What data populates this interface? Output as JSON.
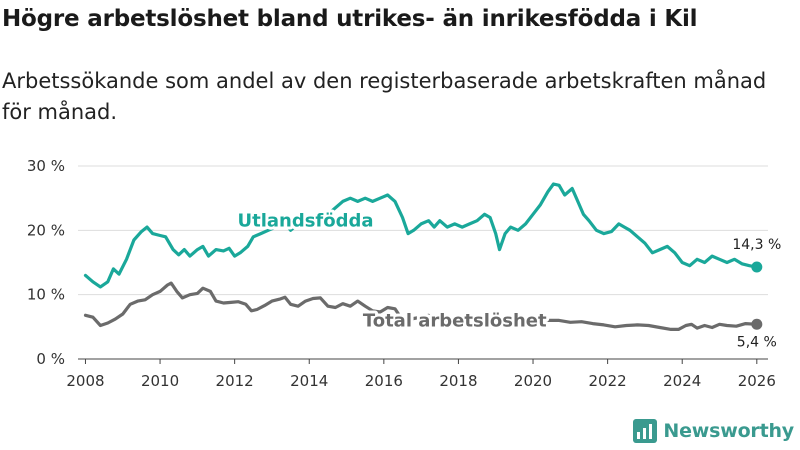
{
  "title": "Högre arbetslöshet bland utrikes- än inrikesfödda i Kil",
  "subtitle": "Arbetssökande som andel av den registerbaserade arbetskraften månad för månad.",
  "brand": "Newsworthy",
  "colors": {
    "foreign_born": "#1aa89a",
    "total": "#6b6b6b",
    "grid": "#dddddd",
    "brand": "#3a9a8f"
  },
  "chart_data": {
    "type": "line",
    "title": "Högre arbetslöshet bland utrikes- än inrikesfödda i Kil",
    "xlabel": "",
    "ylabel": "",
    "xlim": [
      2007.8,
      2026.3
    ],
    "ylim": [
      0,
      30
    ],
    "x_ticks": [
      2008,
      2010,
      2012,
      2014,
      2016,
      2018,
      2020,
      2022,
      2024,
      2026
    ],
    "x_tick_labels": [
      "2008",
      "2010",
      "2012",
      "2014",
      "2016",
      "2018",
      "2020",
      "2022",
      "2024",
      "2026"
    ],
    "y_ticks": [
      0,
      10,
      20,
      30
    ],
    "y_tick_labels": [
      "0 %",
      "10 %",
      "20 %",
      "30 %"
    ],
    "grid": true,
    "series": [
      {
        "name": "Utlandsfödda",
        "color": "#1aa89a",
        "end_label": "14,3 %",
        "points": [
          [
            2008.0,
            13.0
          ],
          [
            2008.2,
            12.0
          ],
          [
            2008.4,
            11.2
          ],
          [
            2008.6,
            12.0
          ],
          [
            2008.75,
            14.0
          ],
          [
            2008.9,
            13.2
          ],
          [
            2009.1,
            15.5
          ],
          [
            2009.3,
            18.5
          ],
          [
            2009.5,
            19.8
          ],
          [
            2009.65,
            20.5
          ],
          [
            2009.8,
            19.5
          ],
          [
            2010.0,
            19.2
          ],
          [
            2010.15,
            19.0
          ],
          [
            2010.35,
            17.0
          ],
          [
            2010.5,
            16.2
          ],
          [
            2010.65,
            17.0
          ],
          [
            2010.8,
            16.0
          ],
          [
            2011.0,
            17.0
          ],
          [
            2011.15,
            17.5
          ],
          [
            2011.3,
            16.0
          ],
          [
            2011.5,
            17.0
          ],
          [
            2011.7,
            16.8
          ],
          [
            2011.85,
            17.2
          ],
          [
            2012.0,
            16.0
          ],
          [
            2012.15,
            16.5
          ],
          [
            2012.35,
            17.5
          ],
          [
            2012.5,
            19.0
          ],
          [
            2012.7,
            19.5
          ],
          [
            2012.9,
            20.0
          ],
          [
            2013.1,
            20.5
          ],
          [
            2013.3,
            21.5
          ],
          [
            2013.5,
            20.0
          ],
          [
            2013.7,
            21.0
          ],
          [
            2013.9,
            21.5
          ],
          [
            2014.1,
            21.0
          ],
          [
            2014.3,
            22.0
          ],
          [
            2014.5,
            22.5
          ],
          [
            2014.7,
            23.5
          ],
          [
            2014.9,
            24.5
          ],
          [
            2015.1,
            25.0
          ],
          [
            2015.3,
            24.5
          ],
          [
            2015.5,
            25.0
          ],
          [
            2015.7,
            24.5
          ],
          [
            2015.9,
            25.0
          ],
          [
            2016.1,
            25.5
          ],
          [
            2016.3,
            24.5
          ],
          [
            2016.5,
            22.0
          ],
          [
            2016.65,
            19.5
          ],
          [
            2016.8,
            20.0
          ],
          [
            2017.0,
            21.0
          ],
          [
            2017.2,
            21.5
          ],
          [
            2017.35,
            20.5
          ],
          [
            2017.5,
            21.5
          ],
          [
            2017.7,
            20.5
          ],
          [
            2017.9,
            21.0
          ],
          [
            2018.1,
            20.5
          ],
          [
            2018.3,
            21.0
          ],
          [
            2018.5,
            21.5
          ],
          [
            2018.7,
            22.5
          ],
          [
            2018.85,
            22.0
          ],
          [
            2019.0,
            19.5
          ],
          [
            2019.1,
            17.0
          ],
          [
            2019.25,
            19.5
          ],
          [
            2019.4,
            20.5
          ],
          [
            2019.6,
            20.0
          ],
          [
            2019.8,
            21.0
          ],
          [
            2020.0,
            22.5
          ],
          [
            2020.2,
            24.0
          ],
          [
            2020.4,
            26.0
          ],
          [
            2020.55,
            27.2
          ],
          [
            2020.7,
            27.0
          ],
          [
            2020.85,
            25.5
          ],
          [
            2021.05,
            26.5
          ],
          [
            2021.2,
            24.5
          ],
          [
            2021.35,
            22.5
          ],
          [
            2021.5,
            21.5
          ],
          [
            2021.7,
            20.0
          ],
          [
            2021.9,
            19.5
          ],
          [
            2022.1,
            19.8
          ],
          [
            2022.3,
            21.0
          ],
          [
            2022.45,
            20.5
          ],
          [
            2022.6,
            20.0
          ],
          [
            2022.8,
            19.0
          ],
          [
            2023.0,
            18.0
          ],
          [
            2023.2,
            16.5
          ],
          [
            2023.4,
            17.0
          ],
          [
            2023.6,
            17.5
          ],
          [
            2023.8,
            16.5
          ],
          [
            2024.0,
            15.0
          ],
          [
            2024.2,
            14.5
          ],
          [
            2024.4,
            15.5
          ],
          [
            2024.6,
            15.0
          ],
          [
            2024.8,
            16.0
          ],
          [
            2025.0,
            15.5
          ],
          [
            2025.2,
            15.0
          ],
          [
            2025.4,
            15.5
          ],
          [
            2025.6,
            14.8
          ],
          [
            2025.8,
            14.5
          ],
          [
            2026.0,
            14.3
          ]
        ]
      },
      {
        "name": "Total arbetslöshet",
        "color": "#6b6b6b",
        "end_label": "5,4 %",
        "points": [
          [
            2008.0,
            6.8
          ],
          [
            2008.2,
            6.5
          ],
          [
            2008.4,
            5.2
          ],
          [
            2008.6,
            5.6
          ],
          [
            2008.8,
            6.2
          ],
          [
            2009.0,
            7.0
          ],
          [
            2009.2,
            8.5
          ],
          [
            2009.4,
            9.0
          ],
          [
            2009.6,
            9.2
          ],
          [
            2009.8,
            10.0
          ],
          [
            2010.0,
            10.5
          ],
          [
            2010.2,
            11.5
          ],
          [
            2010.3,
            11.8
          ],
          [
            2010.45,
            10.5
          ],
          [
            2010.6,
            9.5
          ],
          [
            2010.8,
            10.0
          ],
          [
            2011.0,
            10.2
          ],
          [
            2011.15,
            11.0
          ],
          [
            2011.35,
            10.5
          ],
          [
            2011.5,
            9.0
          ],
          [
            2011.7,
            8.7
          ],
          [
            2011.9,
            8.8
          ],
          [
            2012.1,
            8.9
          ],
          [
            2012.3,
            8.5
          ],
          [
            2012.45,
            7.5
          ],
          [
            2012.6,
            7.7
          ],
          [
            2012.8,
            8.3
          ],
          [
            2013.0,
            9.0
          ],
          [
            2013.2,
            9.3
          ],
          [
            2013.35,
            9.6
          ],
          [
            2013.5,
            8.5
          ],
          [
            2013.7,
            8.2
          ],
          [
            2013.9,
            9.0
          ],
          [
            2014.1,
            9.4
          ],
          [
            2014.3,
            9.5
          ],
          [
            2014.5,
            8.2
          ],
          [
            2014.7,
            8.0
          ],
          [
            2014.9,
            8.6
          ],
          [
            2015.1,
            8.2
          ],
          [
            2015.3,
            9.0
          ],
          [
            2015.5,
            8.2
          ],
          [
            2015.7,
            7.5
          ],
          [
            2015.9,
            7.3
          ],
          [
            2016.1,
            8.0
          ],
          [
            2016.3,
            7.8
          ],
          [
            2016.45,
            6.5
          ],
          [
            2016.6,
            5.8
          ],
          [
            2016.8,
            6.3
          ],
          [
            2017.0,
            6.5
          ],
          [
            2017.2,
            6.8
          ],
          [
            2017.4,
            6.3
          ],
          [
            2017.6,
            6.0
          ],
          [
            2017.8,
            5.8
          ],
          [
            2018.0,
            5.5
          ],
          [
            2018.3,
            5.0
          ],
          [
            2018.6,
            5.2
          ],
          [
            2018.9,
            5.0
          ],
          [
            2019.2,
            5.3
          ],
          [
            2019.5,
            5.0
          ],
          [
            2019.8,
            5.5
          ],
          [
            2020.1,
            5.8
          ],
          [
            2020.4,
            6.0
          ],
          [
            2020.7,
            6.0
          ],
          [
            2021.0,
            5.7
          ],
          [
            2021.3,
            5.8
          ],
          [
            2021.6,
            5.5
          ],
          [
            2021.9,
            5.3
          ],
          [
            2022.2,
            5.0
          ],
          [
            2022.5,
            5.2
          ],
          [
            2022.8,
            5.3
          ],
          [
            2023.1,
            5.2
          ],
          [
            2023.4,
            4.9
          ],
          [
            2023.7,
            4.6
          ],
          [
            2023.9,
            4.6
          ],
          [
            2024.1,
            5.2
          ],
          [
            2024.25,
            5.4
          ],
          [
            2024.4,
            4.8
          ],
          [
            2024.6,
            5.2
          ],
          [
            2024.8,
            4.9
          ],
          [
            2025.0,
            5.4
          ],
          [
            2025.2,
            5.2
          ],
          [
            2025.45,
            5.1
          ],
          [
            2025.7,
            5.5
          ],
          [
            2026.0,
            5.4
          ]
        ]
      }
    ]
  }
}
